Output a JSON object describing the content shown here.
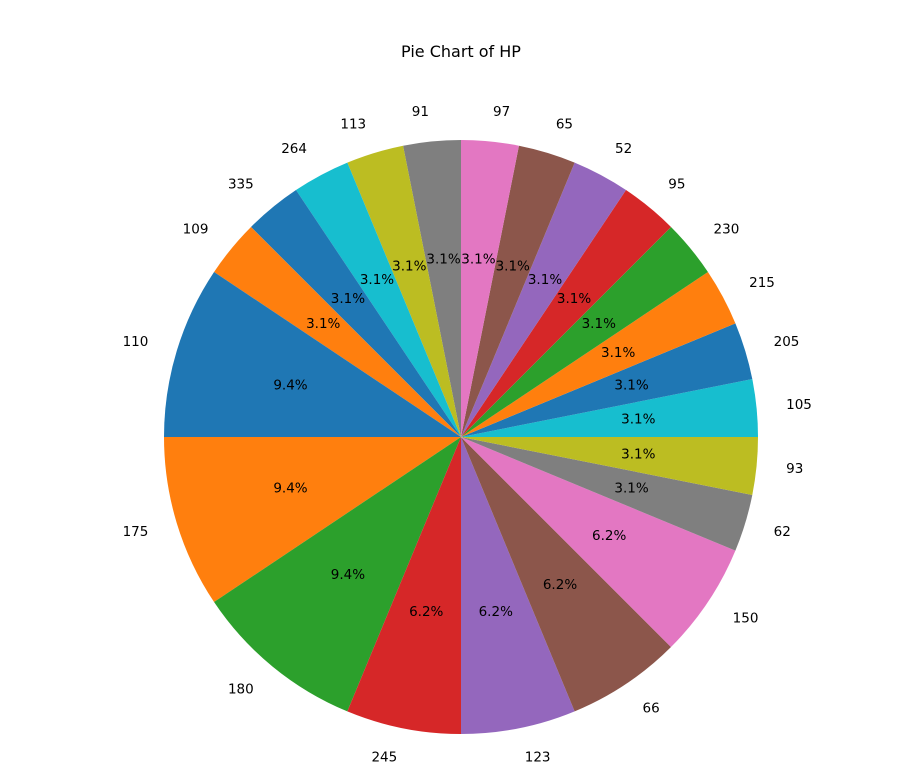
{
  "chart_data": {
    "type": "pie",
    "title": "Pie Chart of HP",
    "start_angle": 90,
    "direction": "counterclockwise",
    "slices": [
      {
        "label": "91",
        "value": 1,
        "pct": "3.1%",
        "color": "#7f7f7f"
      },
      {
        "label": "113",
        "value": 1,
        "pct": "3.1%",
        "color": "#bcbd22"
      },
      {
        "label": "264",
        "value": 1,
        "pct": "3.1%",
        "color": "#17becf"
      },
      {
        "label": "335",
        "value": 1,
        "pct": "3.1%",
        "color": "#1f77b4"
      },
      {
        "label": "109",
        "value": 1,
        "pct": "3.1%",
        "color": "#ff7f0e"
      },
      {
        "label": "110",
        "value": 3,
        "pct": "9.4%",
        "color": "#1f77b4"
      },
      {
        "label": "175",
        "value": 3,
        "pct": "9.4%",
        "color": "#ff7f0e"
      },
      {
        "label": "180",
        "value": 3,
        "pct": "9.4%",
        "color": "#2ca02c"
      },
      {
        "label": "245",
        "value": 2,
        "pct": "6.2%",
        "color": "#d62728"
      },
      {
        "label": "123",
        "value": 2,
        "pct": "6.2%",
        "color": "#9467bd"
      },
      {
        "label": "66",
        "value": 2,
        "pct": "6.2%",
        "color": "#8c564b"
      },
      {
        "label": "150",
        "value": 2,
        "pct": "6.2%",
        "color": "#e377c2"
      },
      {
        "label": "62",
        "value": 1,
        "pct": "3.1%",
        "color": "#7f7f7f"
      },
      {
        "label": "93",
        "value": 1,
        "pct": "3.1%",
        "color": "#bcbd22"
      },
      {
        "label": "105",
        "value": 1,
        "pct": "3.1%",
        "color": "#17becf"
      },
      {
        "label": "205",
        "value": 1,
        "pct": "3.1%",
        "color": "#1f77b4"
      },
      {
        "label": "215",
        "value": 1,
        "pct": "3.1%",
        "color": "#ff7f0e"
      },
      {
        "label": "230",
        "value": 1,
        "pct": "3.1%",
        "color": "#2ca02c"
      },
      {
        "label": "95",
        "value": 1,
        "pct": "3.1%",
        "color": "#d62728"
      },
      {
        "label": "52",
        "value": 1,
        "pct": "3.1%",
        "color": "#9467bd"
      },
      {
        "label": "65",
        "value": 1,
        "pct": "3.1%",
        "color": "#8c564b"
      },
      {
        "label": "97",
        "value": 1,
        "pct": "3.1%",
        "color": "#e377c2"
      }
    ]
  }
}
